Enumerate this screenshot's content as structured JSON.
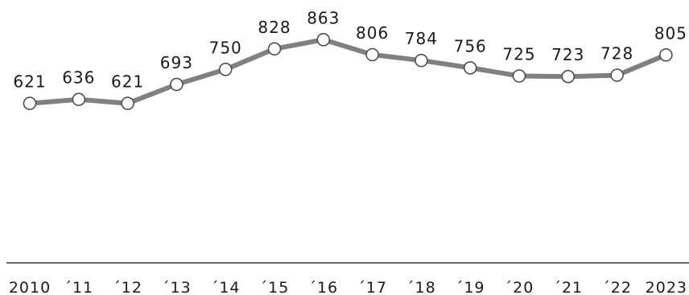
{
  "chart_data": {
    "type": "line",
    "title": "",
    "xlabel": "",
    "ylabel": "",
    "categories": [
      "2010",
      "´11",
      "´12",
      "´13",
      "´14",
      "´15",
      "´16",
      "´17",
      "´18",
      "´19",
      "´20",
      "´21",
      "´22",
      "2023"
    ],
    "series": [
      {
        "values": [
          621,
          636,
          621,
          693,
          750,
          828,
          863,
          806,
          784,
          756,
          725,
          723,
          728,
          805
        ]
      }
    ],
    "data_labels": [
      "621",
      "636",
      "621",
      "693",
      "750",
      "828",
      "863",
      "806",
      "784",
      "756",
      "725",
      "723",
      "728",
      "805"
    ],
    "ylim": [
      0,
      1000
    ],
    "grid": false,
    "legend": "none",
    "colors": {
      "line": "#808080",
      "marker_fill": "#ffffff",
      "marker_stroke": "#4d4d4d",
      "axis": "#333333",
      "text": "#1a1a1a"
    }
  }
}
